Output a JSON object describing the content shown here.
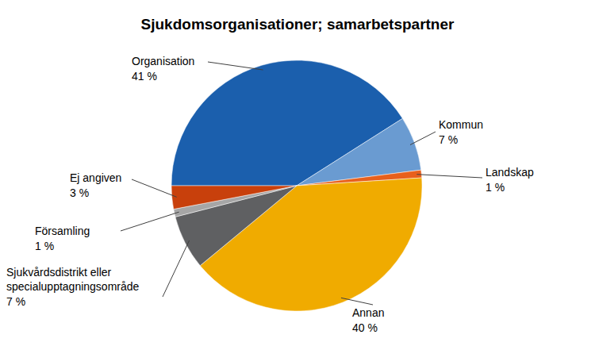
{
  "chart_data": {
    "type": "pie",
    "title": "Sjukdomsorganisationer; samarbetspartner",
    "categories": [
      "Organisation",
      "Kommun",
      "Landskap",
      "Annan",
      "Sjukvårdsdistrikt eller specialupptagningsområde",
      "Församling",
      "Ej angiven"
    ],
    "values": [
      41,
      7,
      1,
      40,
      7,
      1,
      3
    ],
    "value_labels": [
      "41 %",
      "7 %",
      "1 %",
      "40 %",
      "7 %",
      "1 %",
      "3 %"
    ],
    "colors": [
      "#1b5fad",
      "#6a9bd1",
      "#e8601c",
      "#f0ab00",
      "#5f6062",
      "#a6a6a6",
      "#c8400c"
    ],
    "data_labels": true
  }
}
